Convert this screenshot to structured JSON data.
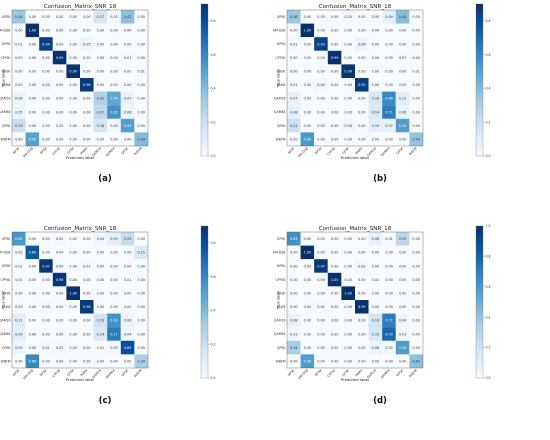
{
  "figure": {
    "labels": [
      "8PSK",
      "AM-DSB",
      "BPSK",
      "CPFSK",
      "GFSK",
      "PAM4",
      "QAM16",
      "QAM64",
      "QPSK",
      "WBFM"
    ],
    "cmap": [
      "#f7fbff",
      "#deebf7",
      "#c6dbef",
      "#9ecae1",
      "#6baed6",
      "#4292c6",
      "#2171b5",
      "#08519c",
      "#08306b"
    ]
  },
  "chart_data": [
    {
      "type": "heatmap",
      "panel": "(a)",
      "title": "Confusion_Matrix_SNR_18",
      "xlabel": "Predicted label",
      "ylabel": "True label",
      "colorbar": {
        "ticks": [
          "0.0",
          "0.2",
          "0.4",
          "0.6",
          "0.8"
        ]
      },
      "values": [
        [
          0.39,
          0.0,
          0.0,
          0.0,
          0.0,
          0.0,
          0.17,
          0.02,
          0.42,
          0.0
        ],
        [
          0.0,
          1.0,
          0.0,
          0.0,
          0.0,
          0.0,
          0.0,
          0.0,
          0.0,
          0.0
        ],
        [
          0.01,
          0.0,
          0.94,
          0.0,
          0.0,
          0.05,
          0.0,
          0.0,
          0.0,
          0.0
        ],
        [
          0.0,
          0.0,
          0.0,
          0.99,
          0.0,
          0.0,
          0.0,
          0.0,
          0.01,
          0.0
        ],
        [
          0.0,
          0.0,
          0.0,
          0.0,
          0.99,
          0.0,
          0.0,
          0.0,
          0.0,
          0.01
        ],
        [
          0.0,
          0.0,
          0.03,
          0.0,
          0.0,
          0.96,
          0.0,
          0.0,
          0.0,
          0.0
        ],
        [
          0.06,
          0.0,
          0.0,
          0.0,
          0.0,
          0.0,
          0.32,
          0.54,
          0.07,
          0.0
        ],
        [
          0.05,
          0.0,
          0.0,
          0.0,
          0.0,
          0.0,
          0.27,
          0.62,
          0.06,
          0.0
        ],
        [
          0.23,
          0.0,
          0.0,
          0.0,
          0.0,
          0.0,
          0.18,
          0.02,
          0.57,
          0.0
        ],
        [
          0.0,
          0.56,
          0.0,
          0.0,
          0.0,
          0.0,
          0.0,
          0.0,
          0.0,
          0.44
        ]
      ]
    },
    {
      "type": "heatmap",
      "panel": "(b)",
      "title": "Confusion_Matrix_SNR_18",
      "xlabel": "Predicted label",
      "ylabel": "True label",
      "colorbar": {
        "ticks": [
          "0.0",
          "0.2",
          "0.4",
          "0.6",
          "0.8"
        ]
      },
      "values": [
        [
          0.38,
          0.0,
          0.0,
          0.0,
          0.03,
          0.0,
          0.0,
          0.09,
          0.43,
          0.0
        ],
        [
          0.0,
          1.0,
          0.0,
          0.0,
          0.0,
          0.0,
          0.0,
          0.0,
          0.0,
          0.0
        ],
        [
          0.01,
          0.0,
          0.93,
          0.0,
          0.0,
          0.06,
          0.0,
          0.0,
          0.0,
          0.0
        ],
        [
          0.0,
          0.0,
          0.0,
          0.99,
          0.0,
          0.0,
          0.0,
          0.0,
          0.01,
          0.0
        ],
        [
          0.0,
          0.0,
          0.0,
          0.0,
          0.99,
          0.0,
          0.0,
          0.0,
          0.0,
          0.01
        ],
        [
          0.01,
          0.0,
          0.04,
          0.0,
          0.0,
          0.95,
          0.0,
          0.0,
          0.0,
          0.0
        ],
        [
          0.07,
          0.0,
          0.0,
          0.0,
          0.0,
          0.0,
          0.16,
          0.66,
          0.11,
          0.0
        ],
        [
          0.08,
          0.0,
          0.0,
          0.0,
          0.0,
          0.0,
          0.14,
          0.71,
          0.06,
          0.0
        ],
        [
          0.21,
          0.0,
          0.0,
          0.0,
          0.04,
          0.0,
          0.1,
          0.07,
          0.58,
          0.0
        ],
        [
          0.0,
          0.6,
          0.0,
          0.0,
          0.0,
          0.0,
          0.0,
          0.0,
          0.0,
          0.4
        ]
      ]
    },
    {
      "type": "heatmap",
      "panel": "(c)",
      "title": "Confusion_Matrix_SNR_18",
      "xlabel": "Predicted label",
      "ylabel": "True label",
      "colorbar": {
        "ticks": [
          "0.0",
          "0.2",
          "0.4",
          "0.6",
          "0.8"
        ]
      },
      "values": [
        [
          0.6,
          0.0,
          0.0,
          0.02,
          0.0,
          0.0,
          0.04,
          0.09,
          0.25,
          0.0
        ],
        [
          0.0,
          0.85,
          0.0,
          0.0,
          0.0,
          0.0,
          0.0,
          0.0,
          0.0,
          0.15
        ],
        [
          0.01,
          0.0,
          0.97,
          0.0,
          0.0,
          0.01,
          0.0,
          0.0,
          0.0,
          0.0
        ],
        [
          0.01,
          0.0,
          0.0,
          0.98,
          0.0,
          0.0,
          0.0,
          0.0,
          0.01,
          0.0
        ],
        [
          0.0,
          0.0,
          0.0,
          0.0,
          1.0,
          0.0,
          0.0,
          0.0,
          0.0,
          0.0
        ],
        [
          0.0,
          0.0,
          0.03,
          0.0,
          0.0,
          0.96,
          0.0,
          0.0,
          0.0,
          0.0
        ],
        [
          0.11,
          0.0,
          0.0,
          0.0,
          0.0,
          0.0,
          0.19,
          0.63,
          0.06,
          0.0
        ],
        [
          0.09,
          0.0,
          0.0,
          0.0,
          0.0,
          0.0,
          0.14,
          0.71,
          0.04,
          0.0
        ],
        [
          0.05,
          0.0,
          0.01,
          0.02,
          0.0,
          0.0,
          0.01,
          0.03,
          0.89,
          0.0
        ],
        [
          0.0,
          0.66,
          0.0,
          0.0,
          0.0,
          0.0,
          0.0,
          0.0,
          0.0,
          0.34
        ]
      ]
    },
    {
      "type": "heatmap",
      "panel": "(d)",
      "title": "Confusion_Matrix_SNR_18",
      "xlabel": "Predicted label",
      "ylabel": "True label",
      "colorbar": {
        "ticks": [
          "0.0",
          "0.2",
          "0.4",
          "0.6",
          "0.8",
          "1.0"
        ]
      },
      "values": [
        [
          0.63,
          0.0,
          0.0,
          0.0,
          0.0,
          0.0,
          0.08,
          0.01,
          0.29,
          0.0
        ],
        [
          0.0,
          1.0,
          0.0,
          0.0,
          0.0,
          0.0,
          0.0,
          0.0,
          0.0,
          0.0
        ],
        [
          0.0,
          0.0,
          0.97,
          0.0,
          0.0,
          0.02,
          0.0,
          0.0,
          0.0,
          0.0
        ],
        [
          0.0,
          0.0,
          0.0,
          1.0,
          0.0,
          0.0,
          0.0,
          0.0,
          0.0,
          0.0
        ],
        [
          0.0,
          0.0,
          0.0,
          0.0,
          1.0,
          0.0,
          0.0,
          0.0,
          0.0,
          0.0
        ],
        [
          0.0,
          0.0,
          0.01,
          0.0,
          0.0,
          0.99,
          0.0,
          0.0,
          0.0,
          0.0
        ],
        [
          0.08,
          0.0,
          0.0,
          0.0,
          0.0,
          0.0,
          0.19,
          0.71,
          0.04,
          0.0
        ],
        [
          0.03,
          0.0,
          0.0,
          0.0,
          0.0,
          0.0,
          0.15,
          0.79,
          0.03,
          0.0
        ],
        [
          0.34,
          0.0,
          0.0,
          0.0,
          0.0,
          0.0,
          0.06,
          0.02,
          0.58,
          0.0
        ],
        [
          0.0,
          0.58,
          0.0,
          0.0,
          0.0,
          0.0,
          0.0,
          0.0,
          0.0,
          0.42
        ]
      ]
    }
  ]
}
